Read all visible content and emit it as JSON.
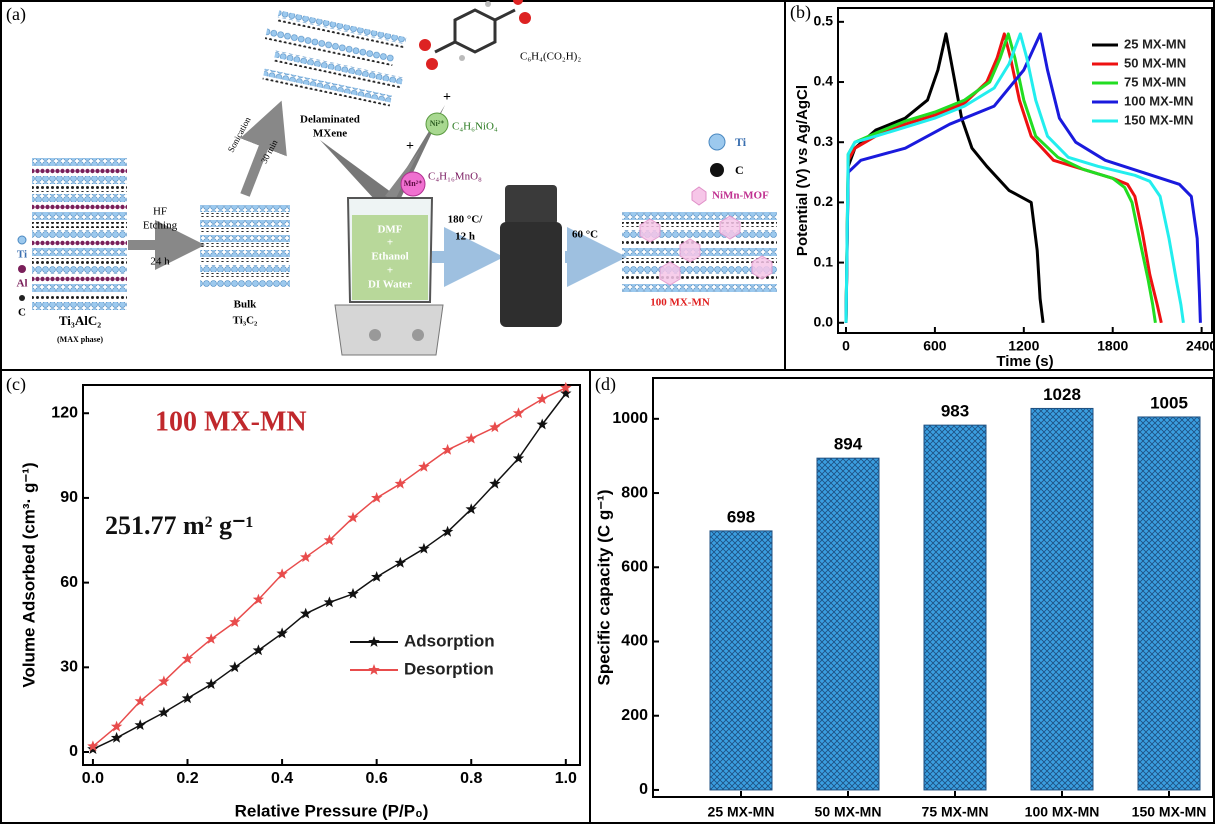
{
  "schematic": {
    "label": "(a)",
    "formula_acid": "C₆H₄(CO₂H)₂",
    "plus_1": "+",
    "ni_ion": "Ni²⁺",
    "ni_salt": "C₄H₆NiO₄",
    "plus_2": "+",
    "mn_ion": "Mn²⁺",
    "mn_salt": "C₄H₁₆MnO₈",
    "delaminated": [
      "Delaminated",
      "MXene"
    ],
    "sonication": "Sonication",
    "sonication_time": "30 min",
    "hf": [
      "HF",
      "Etching"
    ],
    "hf_time": "24 h",
    "max_legend": [
      "Ti",
      "Al",
      "C"
    ],
    "max_name": "Ti₃AlC₂",
    "max_note": "(MAX phase)",
    "bulk": [
      "Bulk",
      "Ti₃C₂"
    ],
    "solvent": [
      "DMF",
      "+",
      "Ethanol",
      "+",
      "DI Water"
    ],
    "hydrothermal": [
      "180 °C/",
      "12 h"
    ],
    "drying": "60 °C",
    "product": "100 MX-MN",
    "legend": [
      "Ti",
      "C",
      "NiMn-MOF"
    ]
  },
  "chart_data": [
    {
      "type": "line",
      "label": "(b)",
      "x_label": "Time (s)",
      "y_label": "Potential (V) vs Ag/AgCl",
      "xlim": [
        -54,
        2470
      ],
      "ylim": [
        -0.017,
        0.523
      ],
      "xticks": [
        0,
        600,
        1200,
        1800,
        2400
      ],
      "yticks": [
        {
          "value": 0,
          "label": "0.0"
        },
        0.1,
        0.2,
        0.3,
        0.4,
        0.5
      ],
      "legend": "upper right",
      "series": [
        {
          "name": "25 MX-MN",
          "color": "#000000",
          "x": [
            0,
            15,
            60,
            200,
            400,
            550,
            620,
            675,
            720,
            780,
            850,
            950,
            1100,
            1250,
            1290,
            1310,
            1330
          ],
          "values": [
            0,
            0.26,
            0.29,
            0.32,
            0.34,
            0.37,
            0.42,
            0.48,
            0.42,
            0.34,
            0.29,
            0.26,
            0.22,
            0.2,
            0.12,
            0.04,
            0
          ]
        },
        {
          "name": "50 MX-MN",
          "color": "#ee1111",
          "x": [
            0,
            15,
            60,
            200,
            400,
            600,
            800,
            950,
            1020,
            1068,
            1110,
            1170,
            1250,
            1400,
            1600,
            1800,
            1900,
            1950,
            2000,
            2050,
            2100,
            2128
          ],
          "values": [
            0,
            0.27,
            0.29,
            0.31,
            0.33,
            0.345,
            0.365,
            0.4,
            0.44,
            0.48,
            0.44,
            0.37,
            0.31,
            0.27,
            0.255,
            0.24,
            0.23,
            0.21,
            0.15,
            0.08,
            0.03,
            0
          ]
        },
        {
          "name": "75 MX-MN",
          "color": "#22dd22",
          "x": [
            0,
            15,
            60,
            200,
            400,
            600,
            800,
            970,
            1040,
            1095,
            1140,
            1200,
            1280,
            1430,
            1600,
            1800,
            1880,
            1930,
            1980,
            2040,
            2070,
            2088
          ],
          "values": [
            0,
            0.28,
            0.3,
            0.315,
            0.335,
            0.35,
            0.37,
            0.4,
            0.44,
            0.48,
            0.44,
            0.37,
            0.31,
            0.275,
            0.255,
            0.24,
            0.225,
            0.2,
            0.14,
            0.07,
            0.03,
            0
          ]
        },
        {
          "name": "100 MX-MN",
          "color": "#1a1add",
          "x": [
            0,
            15,
            100,
            400,
            700,
            1000,
            1200,
            1311,
            1360,
            1440,
            1550,
            1750,
            2000,
            2250,
            2330,
            2370,
            2385,
            2392
          ],
          "values": [
            0,
            0.25,
            0.27,
            0.29,
            0.33,
            0.36,
            0.42,
            0.48,
            0.42,
            0.34,
            0.3,
            0.27,
            0.25,
            0.23,
            0.21,
            0.14,
            0.05,
            0
          ]
        },
        {
          "name": "150 MX-MN",
          "color": "#22eeee",
          "x": [
            0,
            15,
            60,
            200,
            400,
            600,
            800,
            1000,
            1100,
            1176,
            1220,
            1280,
            1360,
            1500,
            1700,
            1950,
            2050,
            2120,
            2180,
            2230,
            2260,
            2277
          ],
          "values": [
            0,
            0.28,
            0.3,
            0.31,
            0.325,
            0.34,
            0.36,
            0.39,
            0.43,
            0.48,
            0.44,
            0.37,
            0.31,
            0.275,
            0.26,
            0.245,
            0.235,
            0.21,
            0.14,
            0.07,
            0.03,
            0
          ]
        }
      ]
    },
    {
      "type": "line",
      "label": "(c)",
      "marker": "star",
      "x_label": "Relative Pressure (P/P₀)",
      "y_label": "Volume Adsorbed (cm³· g⁻¹)",
      "annotations": [
        "100 MX-MN",
        "251.77 m² g⁻¹"
      ],
      "xlim": [
        -0.021,
        1.03
      ],
      "ylim": [
        -4.6,
        130
      ],
      "xticks": [
        {
          "value": 0,
          "label": "0.0"
        },
        0.2,
        0.4,
        0.6,
        0.8,
        {
          "value": 1,
          "label": "1.0"
        }
      ],
      "yticks": [
        0,
        30,
        60,
        90,
        120
      ],
      "legend": "center right",
      "x": [
        0,
        0.05,
        0.1,
        0.15,
        0.2,
        0.25,
        0.3,
        0.35,
        0.4,
        0.45,
        0.5,
        0.55,
        0.6,
        0.65,
        0.7,
        0.75,
        0.8,
        0.85,
        0.9,
        0.95,
        1
      ],
      "series": [
        {
          "name": "Adsorption",
          "color": "#111111",
          "values": [
            1,
            5,
            9.5,
            14,
            19,
            24,
            30,
            36,
            42,
            49,
            53,
            56,
            62,
            67,
            72,
            78,
            86,
            95,
            104,
            116,
            127
          ]
        },
        {
          "name": "Desorption",
          "color": "#e84c4c",
          "values": [
            2,
            9,
            18,
            25,
            33,
            40,
            46,
            54,
            63,
            69,
            75,
            83,
            90,
            95,
            101,
            107,
            111,
            115,
            120,
            125,
            129
          ]
        }
      ]
    },
    {
      "type": "bar",
      "label": "(d)",
      "y_label": "Specific capacity (C g⁻¹)",
      "categories": [
        "25 MX-MN",
        "50 MX-MN",
        "75 MX-MN",
        "100 MX-MN",
        "150 MX-MN"
      ],
      "values": [
        698,
        894,
        983,
        1028,
        1005
      ],
      "color": "#3a9ee0",
      "ylim": [
        -19,
        1110
      ],
      "yticks": [
        0,
        200,
        400,
        600,
        800,
        1000
      ]
    }
  ]
}
